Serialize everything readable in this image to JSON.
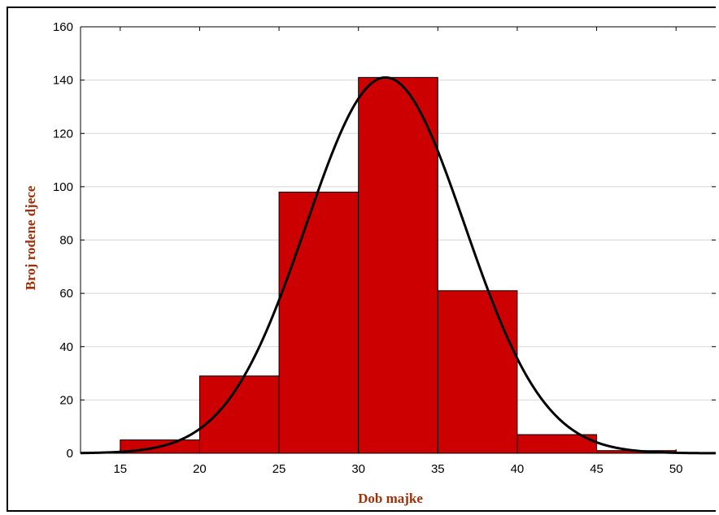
{
  "chart_data": {
    "type": "bar",
    "title": "",
    "xlabel": "Dob majke",
    "ylabel": "Broj rodene djece",
    "bins": [
      {
        "from": 15,
        "to": 20,
        "value": 5
      },
      {
        "from": 20,
        "to": 25,
        "value": 29
      },
      {
        "from": 25,
        "to": 30,
        "value": 98
      },
      {
        "from": 30,
        "to": 35,
        "value": 141
      },
      {
        "from": 35,
        "to": 40,
        "value": 61
      },
      {
        "from": 40,
        "to": 45,
        "value": 7
      },
      {
        "from": 45,
        "to": 50,
        "value": 1
      }
    ],
    "normal_curve": {
      "mean": 31.7,
      "sd": 5.0,
      "peak": 141
    },
    "xticks": [
      15,
      20,
      25,
      30,
      35,
      40,
      45,
      50
    ],
    "yticks": [
      0,
      20,
      40,
      60,
      80,
      100,
      120,
      140,
      160
    ],
    "xlim": [
      12.5,
      52.5
    ],
    "ylim": [
      0,
      160
    ],
    "grid": true,
    "bar_color": "#cc0000",
    "curve_color": "#000000",
    "label_color": "#a0300a"
  }
}
